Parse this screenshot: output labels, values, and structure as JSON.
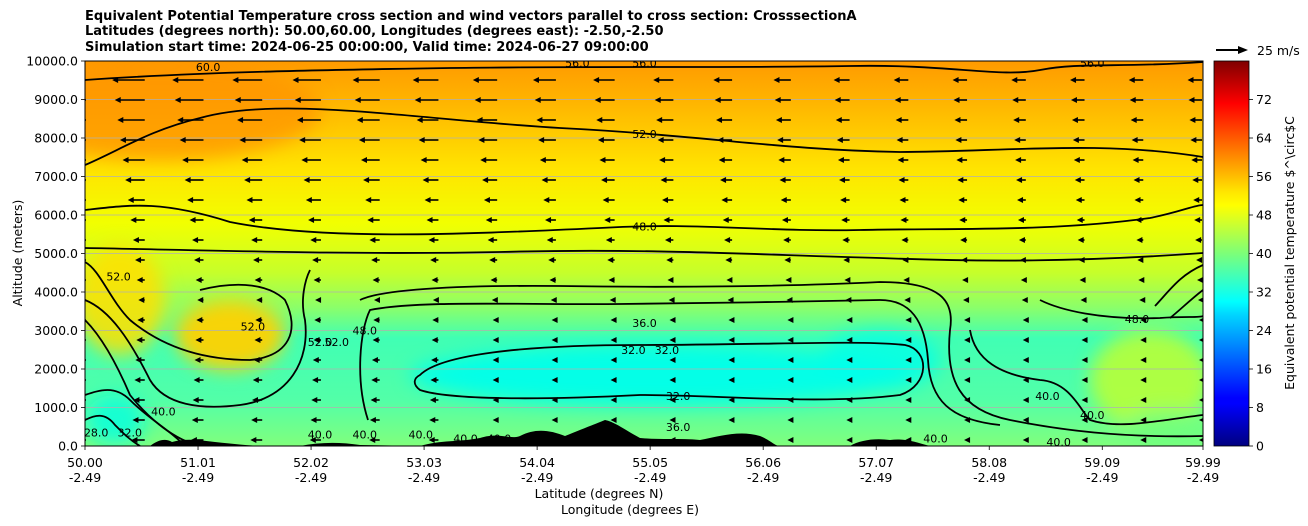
{
  "chart_data": {
    "type": "heatmap",
    "title_lines": [
      "Equivalent Potential Temperature cross section and wind vectors parallel to cross section: CrosssectionA",
      "Latitudes (degrees north): 50.00,60.00, Longitudes (degrees east): -2.50,-2.50",
      "Simulation start time: 2024-06-25 00:00:00, Valid time: 2024-06-27 09:00:00"
    ],
    "ylabel": "Altitude (meters)",
    "xlabel_lines": [
      "Latitude (degrees N)",
      "Longitude (degrees E)"
    ],
    "xlim": [
      50.0,
      59.99
    ],
    "ylim": [
      0,
      10000
    ],
    "grid": "horizontal",
    "x_ticks": [
      {
        "lat": "50.00",
        "lon": "-2.49",
        "value": 50.0
      },
      {
        "lat": "51.01",
        "lon": "-2.49",
        "value": 51.01
      },
      {
        "lat": "52.02",
        "lon": "-2.49",
        "value": 52.02
      },
      {
        "lat": "53.03",
        "lon": "-2.49",
        "value": 53.03
      },
      {
        "lat": "54.04",
        "lon": "-2.49",
        "value": 54.04
      },
      {
        "lat": "55.05",
        "lon": "-2.49",
        "value": 55.05
      },
      {
        "lat": "56.06",
        "lon": "-2.49",
        "value": 56.06
      },
      {
        "lat": "57.07",
        "lon": "-2.49",
        "value": 57.07
      },
      {
        "lat": "58.08",
        "lon": "-2.49",
        "value": 58.08
      },
      {
        "lat": "59.09",
        "lon": "-2.49",
        "value": 59.09
      },
      {
        "lat": "59.99",
        "lon": "-2.49",
        "value": 59.99
      }
    ],
    "y_ticks": [
      {
        "label": "0.0",
        "value": 0
      },
      {
        "label": "1000.0",
        "value": 1000
      },
      {
        "label": "2000.0",
        "value": 2000
      },
      {
        "label": "3000.0",
        "value": 3000
      },
      {
        "label": "4000.0",
        "value": 4000
      },
      {
        "label": "5000.0",
        "value": 5000
      },
      {
        "label": "6000.0",
        "value": 6000
      },
      {
        "label": "7000.0",
        "value": 7000
      },
      {
        "label": "8000.0",
        "value": 8000
      },
      {
        "label": "9000.0",
        "value": 9000
      },
      {
        "label": "10000.0",
        "value": 10000
      }
    ],
    "colorbar": {
      "label": "Equivalent potential temperature $^\\circ$C",
      "range": [
        0,
        80
      ],
      "ticks": [
        "0",
        "8",
        "16",
        "24",
        "32",
        "40",
        "48",
        "56",
        "64",
        "72"
      ],
      "colormap": "jet"
    },
    "quiver_key": {
      "label": "25 m/s",
      "speed": 25
    },
    "contour_labels": [
      {
        "text": "60.0",
        "lat": 51.1,
        "alt": 9850
      },
      {
        "text": "56.0",
        "lat": 54.4,
        "alt": 9950
      },
      {
        "text": "56.0",
        "lat": 55.0,
        "alt": 9950
      },
      {
        "text": "52.0",
        "lat": 55.0,
        "alt": 8100
      },
      {
        "text": "56.0",
        "lat": 59.0,
        "alt": 9950
      },
      {
        "text": "48.0",
        "lat": 55.0,
        "alt": 5700
      },
      {
        "text": "52.0",
        "lat": 50.3,
        "alt": 4400
      },
      {
        "text": "52.0",
        "lat": 51.5,
        "alt": 3100
      },
      {
        "text": "52.0",
        "lat": 52.1,
        "alt": 2700
      },
      {
        "text": "52.0",
        "lat": 52.25,
        "alt": 2700
      },
      {
        "text": "48.0",
        "lat": 52.5,
        "alt": 3000
      },
      {
        "text": "36.0",
        "lat": 55.0,
        "alt": 3200
      },
      {
        "text": "32.0",
        "lat": 54.9,
        "alt": 2500
      },
      {
        "text": "32.0",
        "lat": 55.2,
        "alt": 2500
      },
      {
        "text": "32.0",
        "lat": 55.3,
        "alt": 1300
      },
      {
        "text": "40.0",
        "lat": 50.7,
        "alt": 900
      },
      {
        "text": "32.0",
        "lat": 50.4,
        "alt": 350
      },
      {
        "text": "28.0",
        "lat": 50.1,
        "alt": 350
      },
      {
        "text": "40.0",
        "lat": 52.1,
        "alt": 300
      },
      {
        "text": "40.0",
        "lat": 52.5,
        "alt": 300
      },
      {
        "text": "40.0",
        "lat": 53.0,
        "alt": 300
      },
      {
        "text": "40.0",
        "lat": 53.4,
        "alt": 200
      },
      {
        "text": "40.0",
        "lat": 53.7,
        "alt": 200
      },
      {
        "text": "40",
        "lat": 54.0,
        "alt": 200
      },
      {
        "text": "36.0",
        "lat": 55.3,
        "alt": 500
      },
      {
        "text": "40.0",
        "lat": 57.6,
        "alt": 200
      },
      {
        "text": "40.0",
        "lat": 58.6,
        "alt": 1300
      },
      {
        "text": "40.0",
        "lat": 59.0,
        "alt": 800
      },
      {
        "text": "40.0",
        "lat": 58.7,
        "alt": 100
      },
      {
        "text": "48.0",
        "lat": 59.4,
        "alt": 3300
      }
    ]
  }
}
